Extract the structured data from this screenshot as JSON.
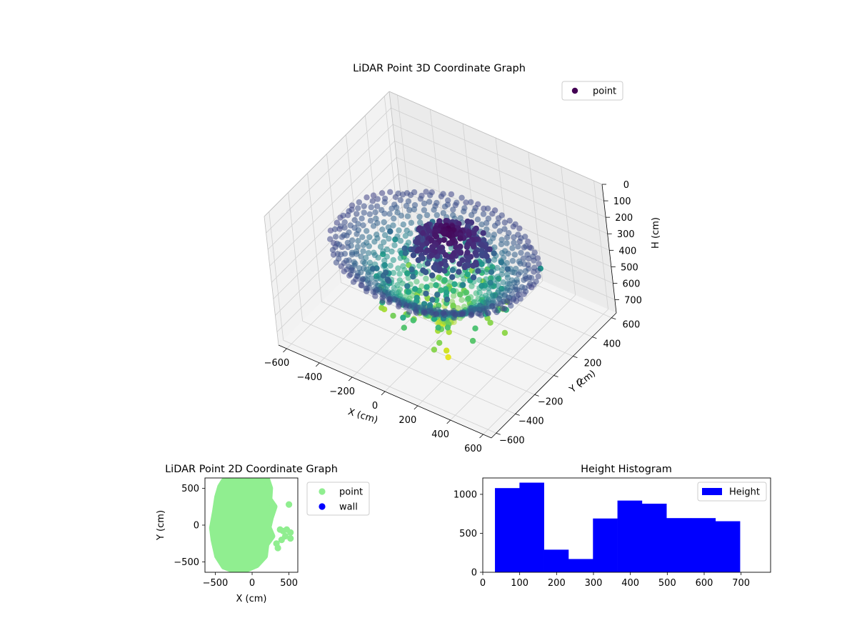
{
  "chart_data": [
    {
      "type": "scatter3d",
      "title": "LiDAR Point 3D Coordinate Graph",
      "xlabel": "X (cm)",
      "ylabel": "Y (cm)",
      "zlabel": "H (cm)",
      "xlim": [
        -650,
        650
      ],
      "ylim": [
        -650,
        650
      ],
      "zlim": [
        0,
        780
      ],
      "z_inverted": true,
      "x_ticks": [
        -600,
        -400,
        -200,
        0,
        200,
        400,
        600
      ],
      "y_ticks": [
        -600,
        -400,
        -200,
        0,
        200,
        400,
        600
      ],
      "z_ticks": [
        0,
        100,
        200,
        300,
        400,
        500,
        600,
        700
      ],
      "colormap": "viridis",
      "grid": true,
      "legend": {
        "entries": [
          "point"
        ],
        "placement": "top-right",
        "colors": [
          "#440154"
        ]
      },
      "series": [
        {
          "name": "point",
          "shape": "dome-shell",
          "bowl_rim_radius_x": 560,
          "bowl_rim_radius_y": 500,
          "rim_height": 300,
          "bottom_height": 740,
          "top_cluster": {
            "center_x": 40,
            "center_y": 50,
            "height_range": [
              180,
              330
            ]
          },
          "outlier_points": [
            {
              "x": 380,
              "y": 380,
              "h": 470
            },
            {
              "x": 150,
              "y": -250,
              "h": 700
            },
            {
              "x": 170,
              "y": -270,
              "h": 720
            }
          ]
        }
      ]
    },
    {
      "type": "scatter",
      "title": "LiDAR Point 2D Coordinate Graph",
      "xlabel": "X (cm)",
      "ylabel": "Y (cm)",
      "xlim": [
        -640,
        620
      ],
      "ylim": [
        -640,
        640
      ],
      "x_ticks": [
        -500,
        0,
        500
      ],
      "y_ticks": [
        -500,
        0,
        500
      ],
      "legend": {
        "entries": [
          "point",
          "wall"
        ],
        "placement": "outside-right",
        "colors": [
          "#90ee90",
          "#0000ff"
        ]
      },
      "series": [
        {
          "name": "point",
          "color": "#90ee90",
          "footprint_outline": [
            [
              -380,
              600
            ],
            [
              -100,
              660
            ],
            [
              200,
              620
            ],
            [
              240,
              500
            ],
            [
              230,
              350
            ],
            [
              300,
              250
            ],
            [
              250,
              100
            ],
            [
              220,
              -30
            ],
            [
              270,
              -150
            ],
            [
              190,
              -260
            ],
            [
              170,
              -420
            ],
            [
              60,
              -540
            ],
            [
              -80,
              -600
            ],
            [
              -250,
              -610
            ],
            [
              -380,
              -560
            ],
            [
              -470,
              -420
            ],
            [
              -520,
              -200
            ],
            [
              -540,
              -40
            ],
            [
              -500,
              180
            ],
            [
              -470,
              380
            ],
            [
              -430,
              520
            ]
          ],
          "outlier_points": [
            [
              500,
              280
            ],
            [
              380,
              -60
            ],
            [
              420,
              -80
            ],
            [
              470,
              -60
            ],
            [
              520,
              -100
            ],
            [
              450,
              -150
            ],
            [
              520,
              -180
            ],
            [
              400,
              -200
            ],
            [
              330,
              -250
            ],
            [
              350,
              -310
            ]
          ]
        },
        {
          "name": "wall",
          "color": "#0000ff",
          "points": []
        }
      ]
    },
    {
      "type": "bar",
      "subtype": "histogram",
      "title": "Height Histogram",
      "xlabel": "",
      "ylabel": "",
      "xlim": [
        0,
        780
      ],
      "ylim": [
        0,
        1210
      ],
      "x_ticks": [
        0,
        100,
        200,
        300,
        400,
        500,
        600,
        700
      ],
      "y_ticks": [
        0,
        500,
        1000
      ],
      "color": "#0000ff",
      "legend": {
        "entries": [
          "Height"
        ],
        "placement": "top-right"
      },
      "bin_edges": [
        33,
        99.4,
        165.8,
        232.2,
        298.6,
        365,
        431.4,
        497.8,
        564.2,
        630.6,
        697
      ],
      "series": [
        {
          "name": "Height",
          "values": [
            1080,
            1150,
            290,
            170,
            690,
            920,
            880,
            695,
            695,
            655
          ]
        }
      ]
    }
  ]
}
